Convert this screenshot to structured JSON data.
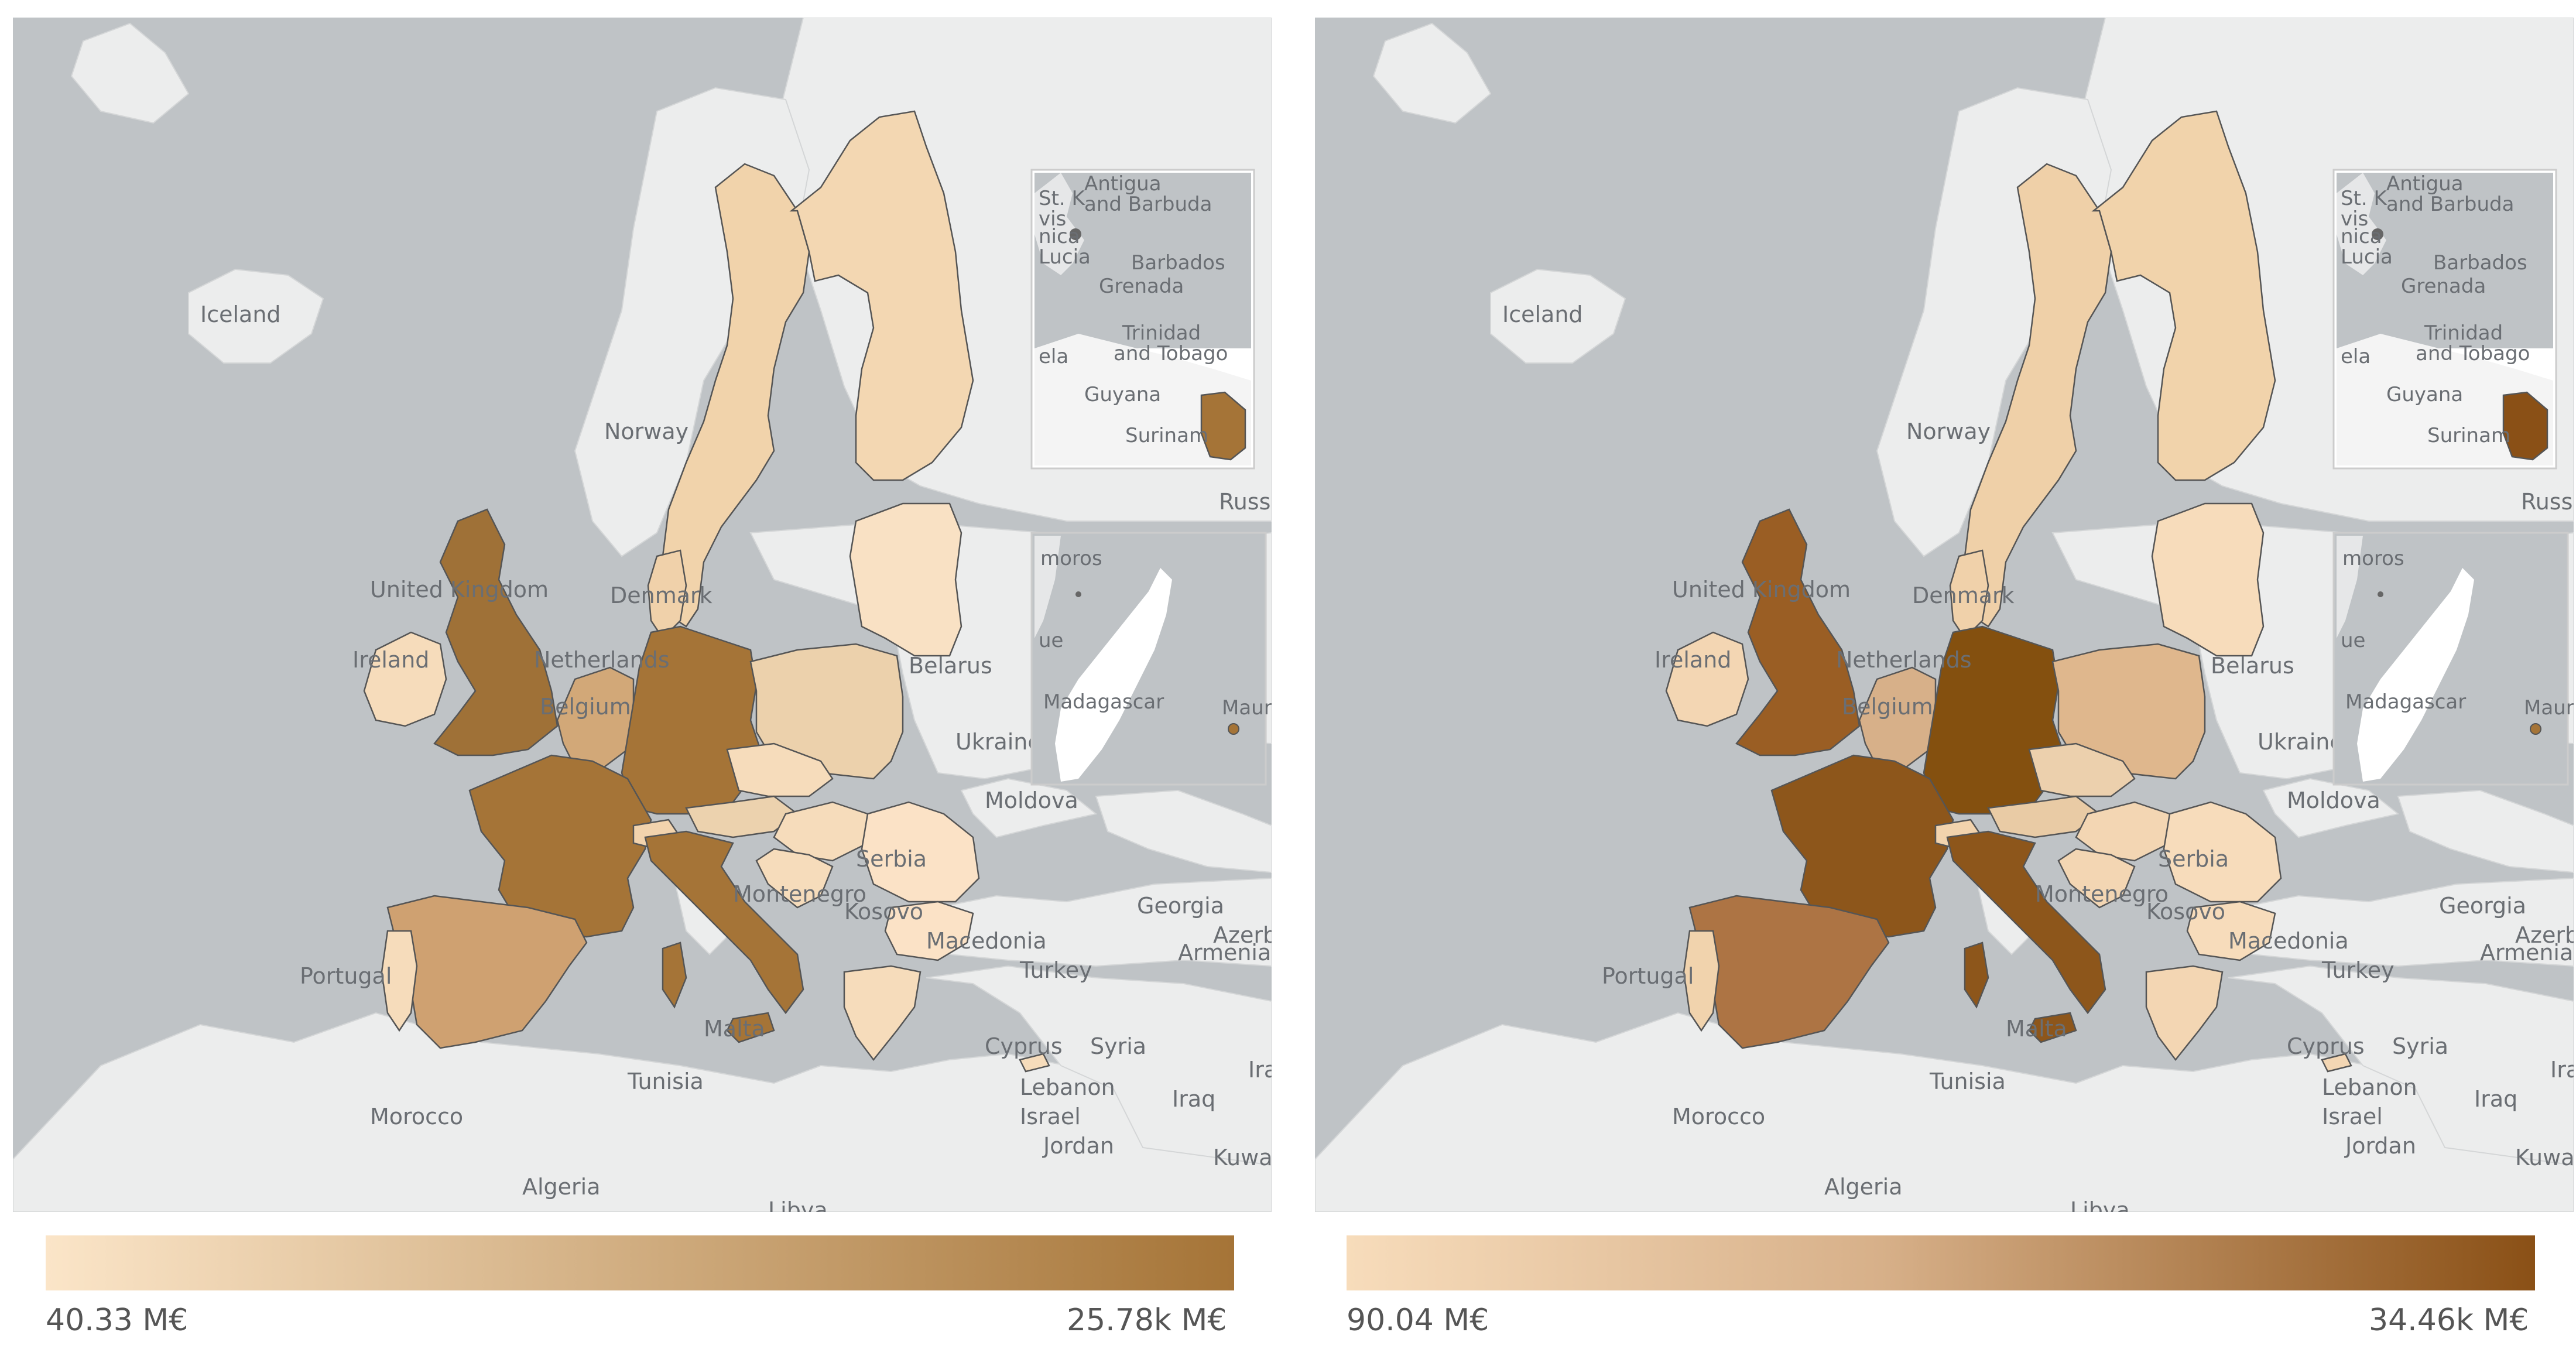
{
  "maps": [
    {
      "id": "left",
      "legend": {
        "min_label": "40.33 M€",
        "max_label": "25.78k M€",
        "min_color": "#fbe5c8",
        "max_color": "#a57437"
      },
      "regions": {
        "uk": "#9f7137",
        "ireland": "#f6dcbb",
        "iberia": "#cfa171",
        "portugal": "#f6dcbb",
        "france": "#a57437",
        "benelux": "#d2a878",
        "germany": "#a57437",
        "italy": "#a57437",
        "alps": "#f2d3ad",
        "poland": "#ecd1ac",
        "baltics": "#f9e1c4",
        "sweden": "#f1d3ab",
        "finland": "#f3d7b2",
        "denmark": "#f0d1aa",
        "czechia": "#f6dcbb",
        "austria": "#ecd2ae",
        "hungary": "#f6dcbb",
        "romania": "#fbe2c6",
        "bulgaria": "#fbe2c6",
        "balkans": "#f6dcbb",
        "greece": "#f6dcbb",
        "cyprus": "#f6dcbb",
        "guiana": "#a57437"
      }
    },
    {
      "id": "right",
      "legend": {
        "min_label": "90.04 M€",
        "max_label": "34.46k M€",
        "min_color": "#f7dcbb",
        "max_color": "#8a5016"
      },
      "regions": {
        "uk": "#9a5e24",
        "ireland": "#f3d6b3",
        "iberia": "#ad7444",
        "portugal": "#f1d3ad",
        "france": "#8d561b",
        "benelux": "#d7b089",
        "germany": "#84500f",
        "italy": "#8d561b",
        "alps": "#f2d3ad",
        "poland": "#dfb78d",
        "baltics": "#f7dcbb",
        "sweden": "#efd0a8",
        "finland": "#f1d3ab",
        "denmark": "#f0d1aa",
        "czechia": "#ecd0ad",
        "austria": "#e9cba5",
        "hungary": "#f3d6b3",
        "romania": "#f7dcbb",
        "bulgaria": "#f7dcbb",
        "balkans": "#f3d6b3",
        "greece": "#f3d6b3",
        "cyprus": "#f3d6b3",
        "guiana": "#8a5016"
      }
    }
  ],
  "place_labels": {
    "iceland": "Iceland",
    "norway": "Norway",
    "united_kingdom": "United Kingdom",
    "netherlands": "Netherlands",
    "denmark": "Denmark",
    "belgium": "Belgium",
    "ireland": "Ireland",
    "belarus": "Belarus",
    "ukraine": "Ukraine",
    "moldova": "Moldova",
    "georgia": "Georgia",
    "azerbaijan": "Azerbaijan",
    "armenia": "Armenia",
    "macedonia": "Macedonia",
    "turkey": "Turkey",
    "portugal": "Portugal",
    "serbia": "Serbia",
    "kosovo": "Kosovo",
    "montenegro": "Montenegro",
    "malta": "Malta",
    "cyprus": "Cyprus",
    "syria": "Syria",
    "lebanon": "Lebanon",
    "israel": "Israel",
    "jordan": "Jordan",
    "iraq": "Iraq",
    "kuwait": "Kuwait",
    "tunisia": "Tunisia",
    "morocco": "Morocco",
    "algeria": "Algeria",
    "libya": "Libya",
    "russia": "Russia",
    "iran": "Iran"
  },
  "inset_caribbean_labels": {
    "antigua": "Antigua",
    "and_barbuda": "and Barbuda",
    "barbados": "Barbados",
    "grenada": "Grenada",
    "trinidad": "Trinidad",
    "and_tobago": "and Tobago",
    "guyana": "Guyana",
    "suriname": "Surinam",
    "venezuela": "ela",
    "saint_lucia": "Lucia",
    "dominica": "nica",
    "saint_kitts": "St. K",
    "nevis": "vis"
  },
  "inset_indian_labels": {
    "comoros": "moros",
    "madagascar": "Madagascar",
    "mauritius": "Maur",
    "mozambique": "ue"
  }
}
